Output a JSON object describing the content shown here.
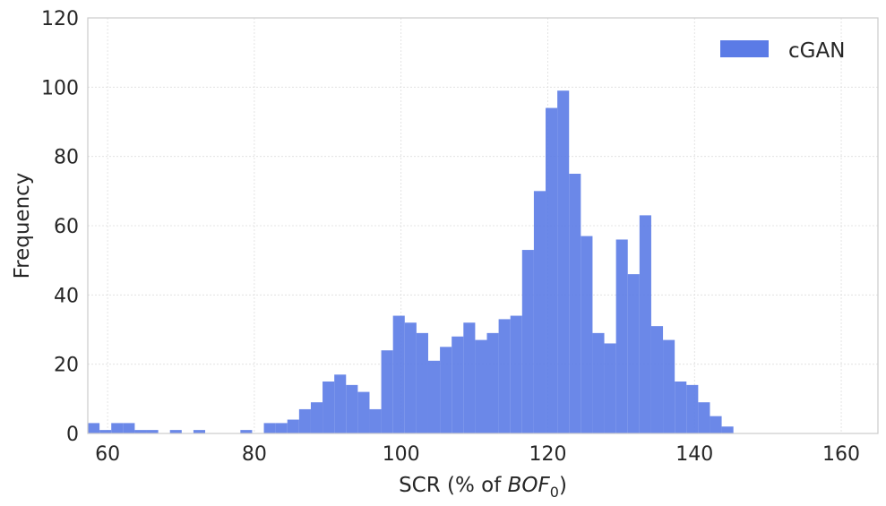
{
  "chart_data": {
    "type": "bar",
    "title": "",
    "xlabel_prefix": "SCR (% of ",
    "xlabel_var": "BOF",
    "xlabel_sub": "0",
    "xlabel_suffix": ")",
    "ylabel": "Frequency",
    "xlim": [
      57.3,
      165
    ],
    "ylim": [
      0,
      120
    ],
    "xticks": [
      60,
      80,
      100,
      120,
      140,
      160
    ],
    "yticks": [
      0,
      20,
      40,
      60,
      80,
      100,
      120
    ],
    "grid": true,
    "legend_position": "top-right",
    "bin_width": 1.6,
    "series": [
      {
        "name": "cGAN",
        "color": "#5b7be6",
        "bin_edges": [
          57.3,
          58.9,
          60.5,
          62.1,
          63.7,
          65.3,
          66.9,
          68.5,
          70.1,
          71.7,
          73.3,
          74.9,
          76.5,
          78.1,
          79.7,
          81.3,
          82.9,
          84.5,
          86.1,
          87.7,
          89.3,
          90.9,
          92.5,
          94.1,
          95.7,
          97.3,
          98.9,
          100.5,
          102.1,
          103.7,
          105.3,
          106.9,
          108.5,
          110.1,
          111.7,
          113.3,
          114.9,
          116.5,
          118.1,
          119.7,
          121.3,
          122.9,
          124.5,
          126.1,
          127.7,
          129.3,
          130.9,
          132.5,
          134.1,
          135.7,
          137.3,
          138.9,
          140.5,
          142.1,
          143.7,
          145.3,
          146.9
        ],
        "values": [
          3,
          1,
          3,
          3,
          1,
          1,
          0,
          1,
          0,
          1,
          0,
          0,
          0,
          1,
          0,
          3,
          3,
          4,
          7,
          9,
          15,
          17,
          14,
          12,
          7,
          24,
          34,
          32,
          29,
          21,
          25,
          28,
          32,
          27,
          29,
          33,
          34,
          53,
          70,
          94,
          99,
          75,
          57,
          29,
          26,
          56,
          46,
          63,
          31,
          27,
          15,
          14,
          9,
          5,
          2,
          0
        ]
      }
    ]
  }
}
